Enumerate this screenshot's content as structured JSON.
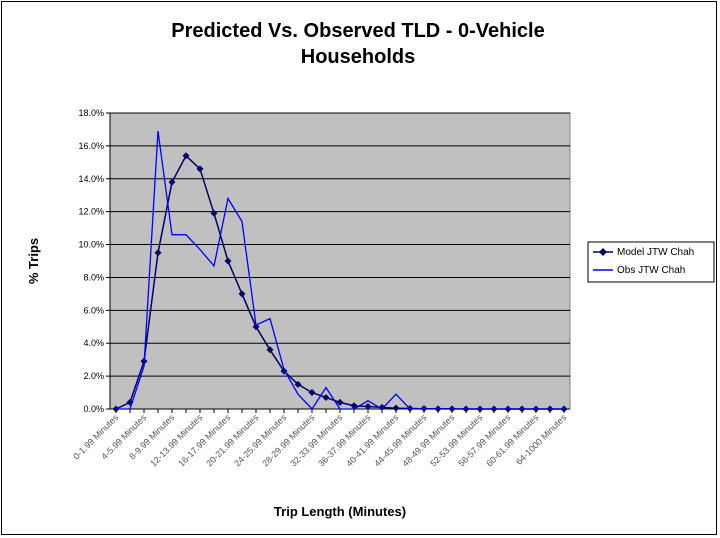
{
  "chart_data": {
    "type": "line",
    "title_line1": "Predicted Vs. Observed TLD - 0-Vehicle",
    "title_line2": "Households",
    "xlabel": "Trip Length (Minutes)",
    "ylabel": "% Trips",
    "ylim": [
      0,
      18
    ],
    "yticks": [
      "0.0%",
      "2.0%",
      "4.0%",
      "6.0%",
      "8.0%",
      "10.0%",
      "12.0%",
      "14.0%",
      "16.0%",
      "18.0%"
    ],
    "grid": true,
    "legend_position": "right",
    "num_points": 33,
    "x_tick_labels": [
      "0-1.99 Minutes",
      "4-5.99 Minutes",
      "8-9.99 Minutes",
      "12-13.99 Minutes",
      "16-17.99 Minutes",
      "20-21.99 Minutes",
      "24-25.99 Minutes",
      "28-29.99 Minutes",
      "32-33.99 Minutes",
      "36-37.99 Minutes",
      "40-41.99 Minutes",
      "44-45.99 Minutes",
      "48-49.99 Minutes",
      "52-53.99 Minutes",
      "56-57.99 Minutes",
      "60-61.99 Minutes",
      "64-1000 Minutes"
    ],
    "series": [
      {
        "name": "Model JTW Chah",
        "color": "#000066",
        "marker": "diamond",
        "values": [
          0.0,
          0.4,
          2.9,
          9.5,
          13.8,
          15.4,
          14.6,
          11.9,
          9.0,
          7.0,
          5.0,
          3.6,
          2.3,
          1.5,
          1.0,
          0.7,
          0.4,
          0.2,
          0.15,
          0.1,
          0.05,
          0.03,
          0.02,
          0.01,
          0.01,
          0.0,
          0.0,
          0.0,
          0.0,
          0.0,
          0.0,
          0.0,
          0.0
        ]
      },
      {
        "name": "Obs JTW Chah",
        "color": "#0000ff",
        "marker": "none",
        "values": [
          0.0,
          0.0,
          2.6,
          16.9,
          10.6,
          10.6,
          9.7,
          8.7,
          12.8,
          11.4,
          5.1,
          5.5,
          2.4,
          0.9,
          0.0,
          1.3,
          0.0,
          0.0,
          0.5,
          0.0,
          0.9,
          0.0,
          0.0,
          0.0,
          0.0,
          0.0,
          0.0,
          0.0,
          0.0,
          0.0,
          0.0,
          0.0,
          0.0
        ]
      }
    ]
  }
}
